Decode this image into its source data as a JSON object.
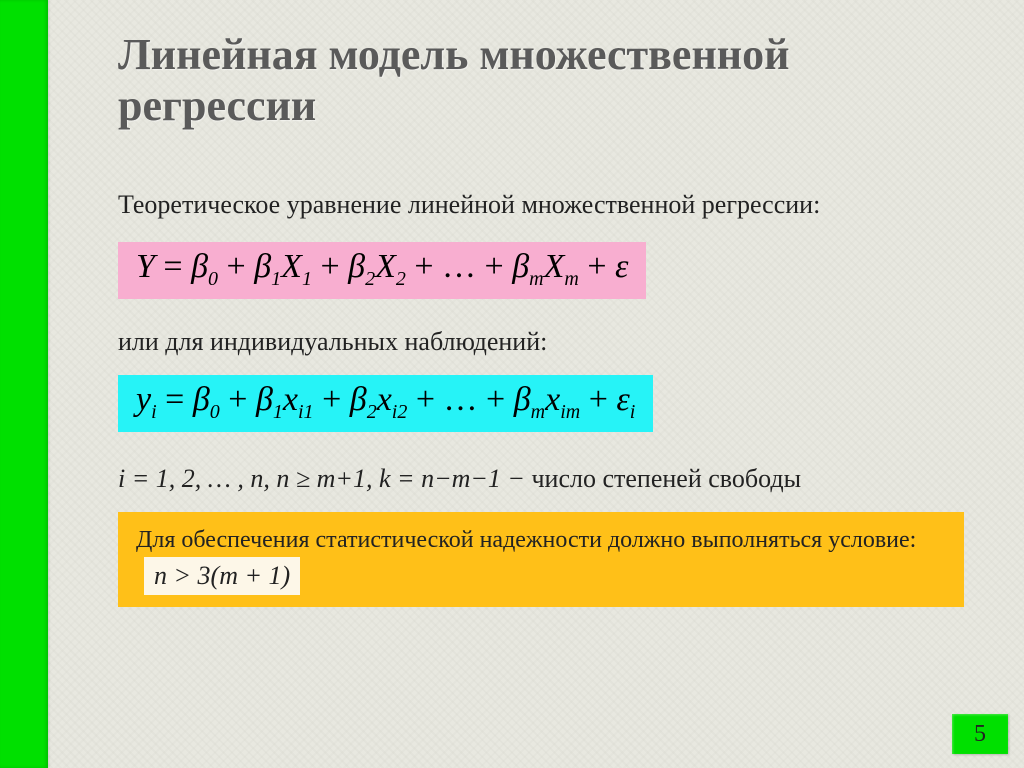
{
  "colors": {
    "sidebar": "#00e000",
    "background": "#e8e8e0",
    "title_text": "#5a5a5a",
    "body_text": "#222222",
    "eq1_bg": "#f8aed0",
    "eq2_bg": "#26f3f7",
    "yellow_bg": "#ffc018",
    "formula_bg": "#fdf7e8",
    "pagenum_bg": "#00e000"
  },
  "typography": {
    "title_size": 44,
    "body_size": 26,
    "eq_size": 34,
    "sub_size": 20,
    "yellow_size": 24,
    "pagenum_size": 24,
    "font_family": "Times New Roman"
  },
  "title": "Линейная модель множественной регрессии",
  "intro_text": "Теоретическое уравнение линейной множественной регрессии:",
  "equation1": {
    "lhs": "Y",
    "terms": [
      {
        "coef": "β",
        "coef_sub": "0"
      },
      {
        "coef": "β",
        "coef_sub": "1",
        "var": "X",
        "var_sub": "1"
      },
      {
        "coef": "β",
        "coef_sub": "2",
        "var": "X",
        "var_sub": "2"
      },
      {
        "ellipsis": true
      },
      {
        "coef": "β",
        "coef_sub": "m",
        "var": "X",
        "var_sub": "m"
      },
      {
        "error": "ε"
      }
    ]
  },
  "between_text": "или для индивидуальных наблюдений:",
  "equation2": {
    "lhs": "y",
    "lhs_sub": "i",
    "terms": [
      {
        "coef": "β",
        "coef_sub": "0"
      },
      {
        "coef": "β",
        "coef_sub": "1",
        "var": "x",
        "var_sub": "i1"
      },
      {
        "coef": "β",
        "coef_sub": "2",
        "var": "x",
        "var_sub": "i2"
      },
      {
        "ellipsis": true
      },
      {
        "coef": "β",
        "coef_sub": "m",
        "var": "x",
        "var_sub": "im"
      },
      {
        "error": "ε",
        "error_sub": "i"
      }
    ]
  },
  "dof_line": {
    "prefix": "i = 1, 2, … , n, n ≥ m+1, k = n−m−1 −",
    "suffix": "число степеней свободы"
  },
  "yellow": {
    "text": "Для обеспечения статистической надежности должно выполняться условие:",
    "condition": "n > 3(m + 1)"
  },
  "page_number": "5"
}
